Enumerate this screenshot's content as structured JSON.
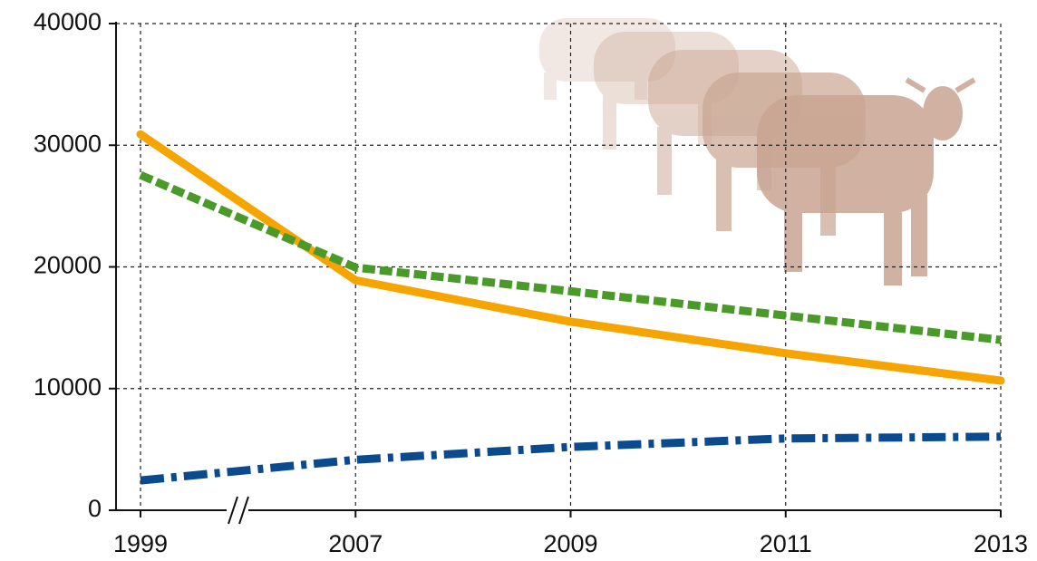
{
  "chart_data": {
    "type": "line",
    "categories": [
      "1999",
      "2007",
      "2009",
      "2011",
      "2013"
    ],
    "series": [
      {
        "color": "#f5a400",
        "dash": "solid",
        "values": [
          30900,
          18900,
          15500,
          12900,
          10650
        ]
      },
      {
        "color": "#4a9a2a",
        "dash": "dashed",
        "values": [
          27550,
          19950,
          18000,
          16000,
          14000
        ]
      },
      {
        "color": "#0b4a8c",
        "dash": "dashdot",
        "values": [
          2450,
          4150,
          5200,
          5900,
          6050
        ]
      }
    ],
    "ylim": [
      0,
      40000
    ],
    "yticks": [
      0,
      10000,
      20000,
      30000,
      40000
    ],
    "grid": true
  }
}
